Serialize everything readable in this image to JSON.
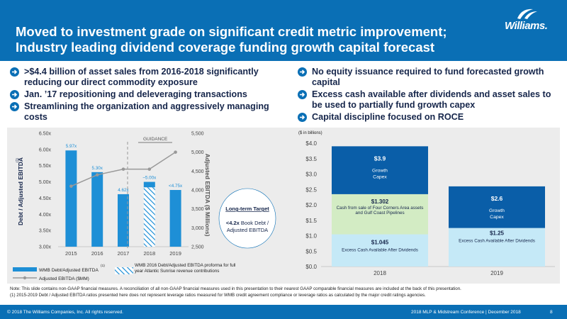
{
  "header": {
    "title_line1": "Moved to investment grade on significant credit metric improvement;",
    "title_line2": "Industry leading dividend coverage funding growth capital forecast",
    "logo_text": "Williams."
  },
  "left_bullets": [
    ">$4.4 billion of asset sales from 2016-2018 significantly reducing our direct commodity exposure",
    "Jan. ’17 repositioning and deleveraging transactions",
    "Streamlining the organization and aggressively managing costs"
  ],
  "right_bullets": [
    "No equity issuance required to fund forecasted growth capital",
    "Excess cash available after dividends and asset sales to be used to partially fund growth capex",
    "Capital discipline focused on ROCE"
  ],
  "left_chart": {
    "guidance_label": "GUIDANCE",
    "target_box": {
      "title": "Long-term Target",
      "line1_bold": "<4.2x",
      "line1_rest": " Book Debt /",
      "line2": "Adjusted EBITDA"
    },
    "legend": {
      "bar": "WMB Debt/Adjusted EBITDA",
      "bar_footnote": "(1)",
      "hatched": "WMB 2016 Debt/Adjusted EBITDA proforma for full year Atlantic Sunrise revenue contributions",
      "line": "Adjusted EBITDA ($MM)"
    }
  },
  "right_chart": {
    "units_label": "($ in billions)"
  },
  "chart_data": [
    {
      "type": "bar",
      "categories": [
        "2015",
        "2016",
        "2017",
        "2018",
        "2019"
      ],
      "ylabel": "Debt / Adjusted EBITDA",
      "ylabel_footnote": "(1)",
      "y2label": "Adjusted EBITDA ($ Millions)",
      "ylim": [
        3.0,
        6.5
      ],
      "y_ticks": [
        "3.00x",
        "3.50x",
        "4.00x",
        "4.50x",
        "5.00x",
        "5.50x",
        "6.00x",
        "6.50x"
      ],
      "y2lim": [
        2500,
        5500
      ],
      "y2_ticks": [
        "2,500",
        "3,000",
        "3,500",
        "4,000",
        "4,500",
        "5,000",
        "5,500"
      ],
      "series": [
        {
          "name": "WMB Debt/Adjusted EBITDA",
          "values": [
            5.97,
            5.3,
            4.62,
            5.0,
            4.75
          ]
        },
        {
          "name": "WMB 2016 Debt/Adjusted EBITDA proforma for full year Atlantic Sunrise revenue contributions",
          "values": [
            null,
            null,
            null,
            4.83,
            null
          ]
        },
        {
          "name": "Adjusted EBITDA ($MM)",
          "values": [
            4100,
            4400,
            4550,
            4550,
            5000
          ]
        }
      ],
      "data_labels": [
        "5.97x",
        "5.30x",
        "4.62x",
        "~5.00x",
        "<4.75x"
      ],
      "grid": false,
      "legend": "bottom"
    },
    {
      "type": "bar",
      "categories": [
        "2018",
        "2019"
      ],
      "ylim": [
        0.0,
        4.0
      ],
      "y_ticks": [
        "$0.0",
        "$0.5",
        "$1.0",
        "$1.5",
        "$2.0",
        "$2.5",
        "$3.0",
        "$3.5",
        "$4.0"
      ],
      "series": [
        {
          "name": "Excess Cash Available After Dividends",
          "values": [
            1.045,
            1.25
          ]
        },
        {
          "name": "Cash from sale of Four Corners Area assets and Gulf Coast Pipelines",
          "values": [
            1.302,
            null
          ]
        },
        {
          "name": "Growth Capex",
          "values": [
            3.9,
            2.6
          ]
        }
      ],
      "segment_labels": {
        "2018": [
          {
            "value": "$1.045",
            "text": "Excess Cash Available After Dividends"
          },
          {
            "value": "$1.302",
            "text": "Cash from sale of Four Corners Area assets and Gulf Coast Pipelines"
          },
          {
            "value": "$3.9",
            "text": "Growth Capex"
          }
        ],
        "2019": [
          {
            "value": "$1.25",
            "text": "Excess Cash Available After Dividends"
          },
          {
            "value": "$2.6",
            "text": "Growth Capex"
          }
        ]
      },
      "grid": false
    }
  ],
  "note": "Note: This slide contains non-GAAP financial measures. A reconciliation of all non-GAAP financial measures used in this presentation to their nearest GAAP comparable financial measures are included at the back of this presentation.",
  "footnote": "(1)     2015-2019 Debt / Adjusted EBITDA ratios presented here does not represent leverage ratios measured for WMB credit agreement compliance or leverage ratios as calculated by the major credit ratings agencies.",
  "footer": {
    "copyright": "© 2018 The Williams Companies, Inc. All rights reserved.",
    "event": "2018 MLP & Midstream Conference   |   December 2018",
    "page": "8"
  },
  "colors": {
    "brand_blue": "#0a6fb5",
    "navy": "#16264b",
    "bar_blue": "#1e8fd6",
    "dark_blue": "#0a5ea8",
    "light_green": "#d3ecc4",
    "light_blue": "#c5e9f7",
    "line_gray": "#999999"
  }
}
